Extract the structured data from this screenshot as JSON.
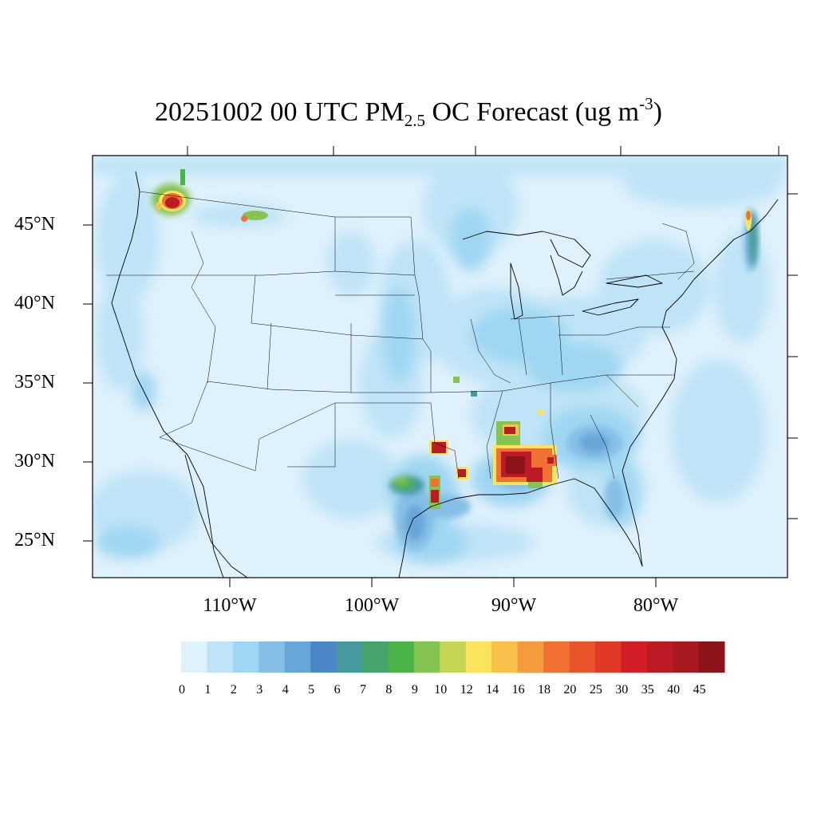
{
  "title": {
    "prefix": "20251002 00 UTC PM",
    "subscript": "2.5",
    "middle": " OC Forecast (ug m",
    "superscript": "-3",
    "suffix": ")"
  },
  "map": {
    "lat_labels": [
      "45°N",
      "40°N",
      "35°N",
      "30°N",
      "25°N"
    ],
    "lon_labels": [
      "110°W",
      "100°W",
      "90°W",
      "80°W"
    ],
    "background_color": "#dff1fb",
    "hotspots": [
      {
        "region": "Washington",
        "max_level": "45"
      },
      {
        "region": "Montana",
        "max_level": "18"
      },
      {
        "region": "Louisiana/Mississippi",
        "max_level": "45"
      },
      {
        "region": "East Texas",
        "max_level": "40"
      },
      {
        "region": "Maine/New Brunswick",
        "max_level": "25"
      }
    ]
  },
  "colorbar": {
    "labels": [
      "0",
      "1",
      "2",
      "3",
      "4",
      "5",
      "6",
      "7",
      "8",
      "9",
      "10",
      "12",
      "14",
      "16",
      "18",
      "20",
      "25",
      "30",
      "35",
      "40",
      "45"
    ],
    "colors": [
      "#dff1fb",
      "#bfe4f7",
      "#9fd6f3",
      "#85bfe6",
      "#67a6d8",
      "#4a86c8",
      "#46999c",
      "#45a36b",
      "#4ab449",
      "#86c451",
      "#c5d654",
      "#f9e45c",
      "#f9c04a",
      "#f69a3e",
      "#f07131",
      "#e9552b",
      "#e03a27",
      "#d31e27",
      "#bc1b26",
      "#a71b20",
      "#8c1419"
    ]
  }
}
